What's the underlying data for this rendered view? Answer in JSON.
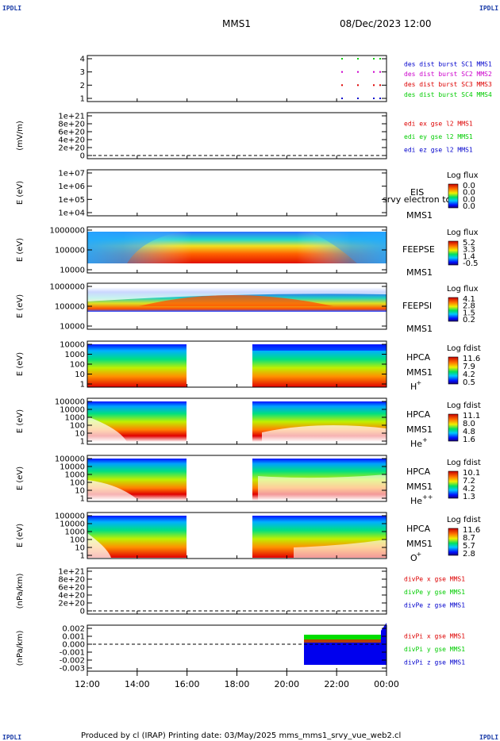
{
  "corners": {
    "tl": "IPDLI",
    "tr": "IPDLI",
    "bl": "IPDLI",
    "br": "IPDLI"
  },
  "header": {
    "mission": "MMS1",
    "datetime": "08/Dec/2023 12:00"
  },
  "footer": "Produced by cl (IRAP)   Printing date: 03/May/2025   mms_mms1_srvy_vue_web2.cl",
  "colors": {
    "blue": "#0000cc",
    "magenta": "#cc00cc",
    "red": "#dd0000",
    "green": "#00cc00"
  },
  "chart_data": {
    "type": "multi-panel time series / spectrograms",
    "xticks": [
      "12:00",
      "14:00",
      "16:00",
      "18:00",
      "20:00",
      "22:00",
      "00:00"
    ],
    "panels": [
      {
        "id": "burst",
        "ylabel": "",
        "yticks": [
          "4",
          "3",
          "2",
          "1"
        ],
        "legend": [
          {
            "text": "des dist burst SC1 MMS1",
            "color": "blue"
          },
          {
            "text": "des dist burst SC2 MMS2",
            "color": "magenta"
          },
          {
            "text": "des dist burst SC3 MMS3",
            "color": "red"
          },
          {
            "text": "des dist burst SC4 MMS4",
            "color": "green"
          }
        ]
      },
      {
        "id": "efield",
        "ylabel": "(mV/m)",
        "yticks": [
          "1e+21",
          "8e+20",
          "6e+20",
          "4e+20",
          "2e+20",
          "0"
        ],
        "legend": [
          {
            "text": "edi ex gse l2 MMS1",
            "color": "red"
          },
          {
            "text": "edi ey gse l2 MMS1",
            "color": "green"
          },
          {
            "text": "edi ez gse l2 MMS1",
            "color": "blue"
          }
        ]
      },
      {
        "id": "eis",
        "ylabel": "E (eV)",
        "yticks": [
          "1e+07",
          "1e+06",
          "1e+05",
          "1e+04"
        ],
        "labels": [
          "EIS",
          "MMS1"
        ],
        "overlay": "srvy electron to",
        "cbar_title": "Log flux",
        "cbar": [
          "0.0",
          "0.0",
          "0.0",
          "0.0"
        ]
      },
      {
        "id": "feepse",
        "ylabel": "E (eV)",
        "yticks": [
          "1000000",
          "100000",
          "10000"
        ],
        "labels": [
          "FEEPSE",
          "MMS1"
        ],
        "cbar_title": "Log flux",
        "cbar": [
          "5.2",
          "3.3",
          "1.4",
          "-0.5"
        ]
      },
      {
        "id": "feepsi",
        "ylabel": "E (eV)",
        "yticks": [
          "1000000",
          "100000",
          "10000"
        ],
        "labels": [
          "FEEPSI",
          "MMS1"
        ],
        "cbar_title": "Log flux",
        "cbar": [
          "4.1",
          "2.8",
          "1.5",
          "0.2"
        ]
      },
      {
        "id": "hpca_h",
        "ylabel": "E (eV)",
        "yticks": [
          "10000",
          "1000",
          "100",
          "10",
          "1"
        ],
        "labels": [
          "HPCA",
          "MMS1"
        ],
        "species": "H",
        "charge": "+",
        "cbar_title": "Log fdist",
        "cbar": [
          "11.6",
          "7.9",
          "4.2",
          "0.5"
        ]
      },
      {
        "id": "hpca_he",
        "ylabel": "E (eV)",
        "yticks": [
          "100000",
          "10000",
          "1000",
          "100",
          "10",
          "1"
        ],
        "labels": [
          "HPCA",
          "MMS1"
        ],
        "species": "He",
        "charge": "+",
        "cbar_title": "Log fdist",
        "cbar": [
          "11.1",
          "8.0",
          "4.8",
          "1.6"
        ]
      },
      {
        "id": "hpca_he2",
        "ylabel": "E (eV)",
        "yticks": [
          "100000",
          "10000",
          "1000",
          "100",
          "10",
          "1"
        ],
        "labels": [
          "HPCA",
          "MMS1"
        ],
        "species": "He",
        "charge": "++",
        "cbar_title": "Log fdist",
        "cbar": [
          "10.1",
          "7.2",
          "4.2",
          "1.3"
        ]
      },
      {
        "id": "hpca_o",
        "ylabel": "E (eV)",
        "yticks": [
          "100000",
          "10000",
          "1000",
          "100",
          "10",
          "1"
        ],
        "labels": [
          "HPCA",
          "MMS1"
        ],
        "species": "O",
        "charge": "+",
        "cbar_title": "Log fdist",
        "cbar": [
          "11.6",
          "8.7",
          "5.7",
          "2.8"
        ]
      },
      {
        "id": "dpe",
        "ylabel": "(nPa/km)",
        "yticks": [
          "1e+21",
          "8e+20",
          "6e+20",
          "4e+20",
          "2e+20",
          "0"
        ],
        "legend": [
          {
            "text": "divPe x gse MMS1",
            "color": "red"
          },
          {
            "text": "divPe y gse MMS1",
            "color": "green"
          },
          {
            "text": "divPe z gse MMS1",
            "color": "blue"
          }
        ]
      },
      {
        "id": "dpi",
        "ylabel": "(nPa/km)",
        "yticks": [
          "0.002",
          "0.001",
          "0.000",
          "-0.001",
          "-0.002",
          "-0.003"
        ],
        "legend": [
          {
            "text": "divPi x gse MMS1",
            "color": "red"
          },
          {
            "text": "divPi y gse MMS1",
            "color": "green"
          },
          {
            "text": "divPi z gse MMS1",
            "color": "blue"
          }
        ]
      }
    ]
  }
}
